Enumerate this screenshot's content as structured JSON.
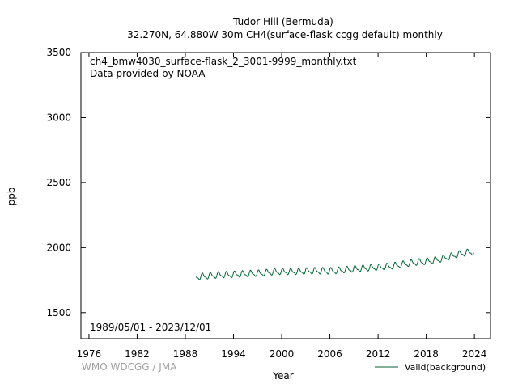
{
  "chart_data": {
    "type": "line",
    "title_line1": "Tudor Hill (Bermuda)",
    "title_line2": "32.270N, 64.880W 30m    CH4(surface-flask ccgg default) monthly",
    "file_label": "ch4_bmw4030_surface-flask_2_3001-9999_monthly.txt",
    "provider_label": "Data provided by NOAA",
    "date_range_label": "1989/05/01 - 2023/12/01",
    "credit_label": "WMO WDCGG / JMA",
    "xlabel": "Year",
    "ylabel": "ppb",
    "xlim": [
      1975,
      2026
    ],
    "ylim": [
      1300,
      3500
    ],
    "x_ticks": [
      "1976",
      "1982",
      "1988",
      "1994",
      "2000",
      "2006",
      "2012",
      "2018",
      "2024"
    ],
    "y_ticks": [
      "1500",
      "2000",
      "2500",
      "3000",
      "3500"
    ],
    "legend_position": "bottom-right",
    "series": [
      {
        "name": "Valid(background)",
        "color": "#006633",
        "start": "1989-05",
        "end": "2023-12",
        "annual_mean": [
          [
            1989,
            1775
          ],
          [
            1990,
            1780
          ],
          [
            1991,
            1785
          ],
          [
            1992,
            1790
          ],
          [
            1993,
            1790
          ],
          [
            1994,
            1795
          ],
          [
            1995,
            1797
          ],
          [
            1996,
            1800
          ],
          [
            1997,
            1802
          ],
          [
            1998,
            1810
          ],
          [
            1999,
            1815
          ],
          [
            2000,
            1815
          ],
          [
            2001,
            1815
          ],
          [
            2002,
            1817
          ],
          [
            2003,
            1820
          ],
          [
            2004,
            1820
          ],
          [
            2005,
            1820
          ],
          [
            2006,
            1820
          ],
          [
            2007,
            1827
          ],
          [
            2008,
            1832
          ],
          [
            2009,
            1837
          ],
          [
            2010,
            1842
          ],
          [
            2011,
            1845
          ],
          [
            2012,
            1850
          ],
          [
            2013,
            1855
          ],
          [
            2014,
            1865
          ],
          [
            2015,
            1875
          ],
          [
            2016,
            1885
          ],
          [
            2017,
            1890
          ],
          [
            2018,
            1897
          ],
          [
            2019,
            1907
          ],
          [
            2020,
            1922
          ],
          [
            2021,
            1940
          ],
          [
            2022,
            1955
          ],
          [
            2023,
            1965
          ]
        ],
        "seasonal_amplitude": 35
      }
    ]
  }
}
